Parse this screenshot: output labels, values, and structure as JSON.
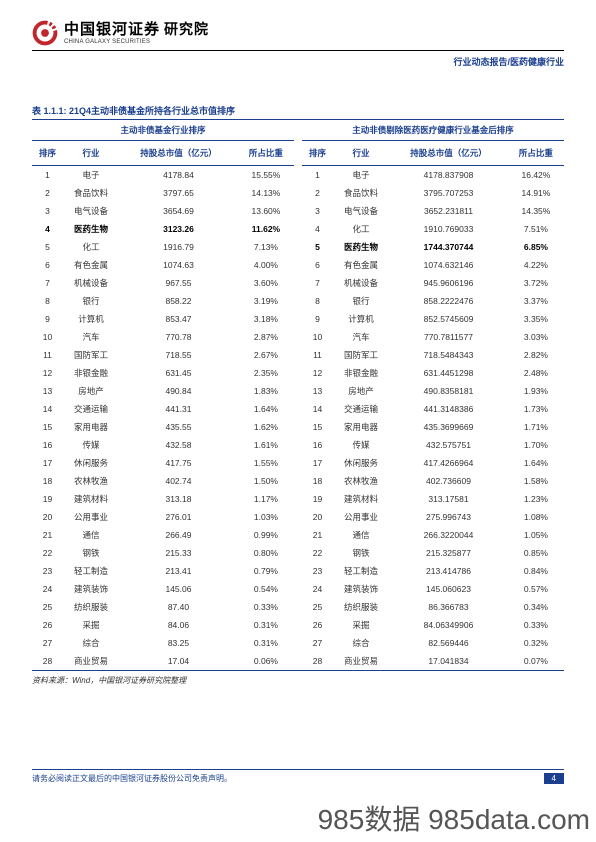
{
  "header": {
    "brand_cn": "中国银河证券",
    "institute": "研究院",
    "brand_en": "CHINA GALAXY SECURITIES",
    "top_right": "行业动态报告/医药健康行业"
  },
  "table": {
    "title": "表 1.1.1:  21Q4主动非债基金所持各行业总市值排序",
    "left_group_header": "主动非债基金行业排序",
    "right_group_header": "主动非债剔除医药医疗健康行业基金后排序",
    "cols_left": [
      "排序",
      "行业",
      "持股总市值（亿元）",
      "所占比重"
    ],
    "cols_right": [
      "排序",
      "行业",
      "持股总市值（亿元）",
      "所占比重"
    ],
    "rows_left": [
      {
        "rank": "1",
        "ind": "电子",
        "val": "4178.84",
        "pct": "15.55%"
      },
      {
        "rank": "2",
        "ind": "食品饮料",
        "val": "3797.65",
        "pct": "14.13%"
      },
      {
        "rank": "3",
        "ind": "电气设备",
        "val": "3654.69",
        "pct": "13.60%"
      },
      {
        "rank": "4",
        "ind": "医药生物",
        "val": "3123.26",
        "pct": "11.62%",
        "bold": true
      },
      {
        "rank": "5",
        "ind": "化工",
        "val": "1916.79",
        "pct": "7.13%"
      },
      {
        "rank": "6",
        "ind": "有色金属",
        "val": "1074.63",
        "pct": "4.00%"
      },
      {
        "rank": "7",
        "ind": "机械设备",
        "val": "967.55",
        "pct": "3.60%"
      },
      {
        "rank": "8",
        "ind": "银行",
        "val": "858.22",
        "pct": "3.19%"
      },
      {
        "rank": "9",
        "ind": "计算机",
        "val": "853.47",
        "pct": "3.18%"
      },
      {
        "rank": "10",
        "ind": "汽车",
        "val": "770.78",
        "pct": "2.87%"
      },
      {
        "rank": "11",
        "ind": "国防军工",
        "val": "718.55",
        "pct": "2.67%"
      },
      {
        "rank": "12",
        "ind": "非银金融",
        "val": "631.45",
        "pct": "2.35%"
      },
      {
        "rank": "13",
        "ind": "房地产",
        "val": "490.84",
        "pct": "1.83%"
      },
      {
        "rank": "14",
        "ind": "交通运输",
        "val": "441.31",
        "pct": "1.64%"
      },
      {
        "rank": "15",
        "ind": "家用电器",
        "val": "435.55",
        "pct": "1.62%"
      },
      {
        "rank": "16",
        "ind": "传媒",
        "val": "432.58",
        "pct": "1.61%"
      },
      {
        "rank": "17",
        "ind": "休闲服务",
        "val": "417.75",
        "pct": "1.55%"
      },
      {
        "rank": "18",
        "ind": "农林牧渔",
        "val": "402.74",
        "pct": "1.50%"
      },
      {
        "rank": "19",
        "ind": "建筑材料",
        "val": "313.18",
        "pct": "1.17%"
      },
      {
        "rank": "20",
        "ind": "公用事业",
        "val": "276.01",
        "pct": "1.03%"
      },
      {
        "rank": "21",
        "ind": "通信",
        "val": "266.49",
        "pct": "0.99%"
      },
      {
        "rank": "22",
        "ind": "钢铁",
        "val": "215.33",
        "pct": "0.80%"
      },
      {
        "rank": "23",
        "ind": "轻工制造",
        "val": "213.41",
        "pct": "0.79%"
      },
      {
        "rank": "24",
        "ind": "建筑装饰",
        "val": "145.06",
        "pct": "0.54%"
      },
      {
        "rank": "25",
        "ind": "纺织服装",
        "val": "87.40",
        "pct": "0.33%"
      },
      {
        "rank": "26",
        "ind": "采掘",
        "val": "84.06",
        "pct": "0.31%"
      },
      {
        "rank": "27",
        "ind": "综合",
        "val": "83.25",
        "pct": "0.31%"
      },
      {
        "rank": "28",
        "ind": "商业贸易",
        "val": "17.04",
        "pct": "0.06%"
      }
    ],
    "rows_right": [
      {
        "rank": "1",
        "ind": "电子",
        "val": "4178.837908",
        "pct": "16.42%"
      },
      {
        "rank": "2",
        "ind": "食品饮料",
        "val": "3795.707253",
        "pct": "14.91%"
      },
      {
        "rank": "3",
        "ind": "电气设备",
        "val": "3652.231811",
        "pct": "14.35%"
      },
      {
        "rank": "4",
        "ind": "化工",
        "val": "1910.769033",
        "pct": "7.51%"
      },
      {
        "rank": "5",
        "ind": "医药生物",
        "val": "1744.370744",
        "pct": "6.85%",
        "bold": true
      },
      {
        "rank": "6",
        "ind": "有色金属",
        "val": "1074.632146",
        "pct": "4.22%"
      },
      {
        "rank": "7",
        "ind": "机械设备",
        "val": "945.9606196",
        "pct": "3.72%"
      },
      {
        "rank": "8",
        "ind": "银行",
        "val": "858.2222476",
        "pct": "3.37%"
      },
      {
        "rank": "9",
        "ind": "计算机",
        "val": "852.5745609",
        "pct": "3.35%"
      },
      {
        "rank": "10",
        "ind": "汽车",
        "val": "770.7811577",
        "pct": "3.03%"
      },
      {
        "rank": "11",
        "ind": "国防军工",
        "val": "718.5484343",
        "pct": "2.82%"
      },
      {
        "rank": "12",
        "ind": "非银金融",
        "val": "631.4451298",
        "pct": "2.48%"
      },
      {
        "rank": "13",
        "ind": "房地产",
        "val": "490.8358181",
        "pct": "1.93%"
      },
      {
        "rank": "14",
        "ind": "交通运输",
        "val": "441.3148386",
        "pct": "1.73%"
      },
      {
        "rank": "15",
        "ind": "家用电器",
        "val": "435.3699669",
        "pct": "1.71%"
      },
      {
        "rank": "16",
        "ind": "传媒",
        "val": "432.575751",
        "pct": "1.70%"
      },
      {
        "rank": "17",
        "ind": "休闲服务",
        "val": "417.4266964",
        "pct": "1.64%"
      },
      {
        "rank": "18",
        "ind": "农林牧渔",
        "val": "402.736609",
        "pct": "1.58%"
      },
      {
        "rank": "19",
        "ind": "建筑材料",
        "val": "313.17581",
        "pct": "1.23%"
      },
      {
        "rank": "20",
        "ind": "公用事业",
        "val": "275.996743",
        "pct": "1.08%"
      },
      {
        "rank": "21",
        "ind": "通信",
        "val": "266.3220044",
        "pct": "1.05%"
      },
      {
        "rank": "22",
        "ind": "钢铁",
        "val": "215.325877",
        "pct": "0.85%"
      },
      {
        "rank": "23",
        "ind": "轻工制造",
        "val": "213.414786",
        "pct": "0.84%"
      },
      {
        "rank": "24",
        "ind": "建筑装饰",
        "val": "145.060623",
        "pct": "0.57%"
      },
      {
        "rank": "25",
        "ind": "纺织服装",
        "val": "86.366783",
        "pct": "0.34%"
      },
      {
        "rank": "26",
        "ind": "采掘",
        "val": "84.06349906",
        "pct": "0.33%"
      },
      {
        "rank": "27",
        "ind": "综合",
        "val": "82.569446",
        "pct": "0.32%"
      },
      {
        "rank": "28",
        "ind": "商业贸易",
        "val": "17.041834",
        "pct": "0.07%"
      }
    ],
    "source": "资料来源：Wind，中国银河证券研究院整理"
  },
  "footer": {
    "disclaimer": "请务必阅读正文最后的中国银河证券股份公司免责声明。",
    "page": "4"
  },
  "watermark": "985数据 985data.com",
  "colors": {
    "accent": "#1b3f8f",
    "logo_red": "#c0272d"
  }
}
